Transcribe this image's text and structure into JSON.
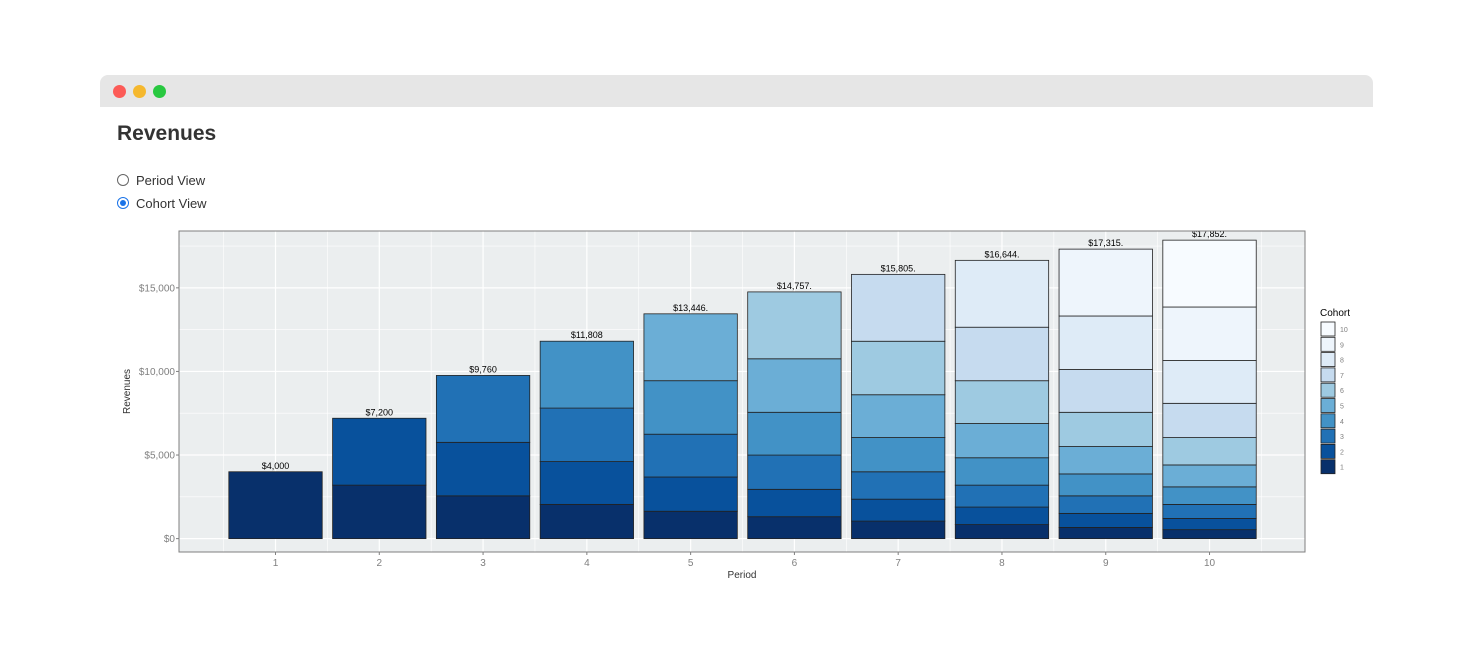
{
  "page": {
    "title": "Revenues"
  },
  "view_toggle": {
    "options": [
      {
        "label": "Period View",
        "selected": false
      },
      {
        "label": "Cohort View",
        "selected": true
      }
    ]
  },
  "chart_data": {
    "type": "bar",
    "stacked": true,
    "xlabel": "Period",
    "ylabel": "Revenues",
    "ylim": [
      -800,
      18400
    ],
    "yticks": [
      0,
      5000,
      10000,
      15000
    ],
    "ytick_labels": [
      "$0",
      "$5,000",
      "$10,000",
      "$15,000"
    ],
    "categories": [
      "1",
      "2",
      "3",
      "4",
      "5",
      "6",
      "7",
      "8",
      "9",
      "10"
    ],
    "totals": [
      4000,
      7200,
      9760,
      11808,
      13446,
      14757,
      15805,
      16644,
      17315,
      17852
    ],
    "total_labels": [
      "$4,000",
      "$7,200",
      "$9,760",
      "$11,808",
      "$13,446.",
      "$14,757.",
      "$15,805.",
      "$16,644.",
      "$17,315.",
      "$17,852."
    ],
    "legend": {
      "title": "Cohort",
      "position": "right",
      "entries": [
        "10",
        "9",
        "8",
        "7",
        "6",
        "5",
        "4",
        "3",
        "2",
        "1"
      ]
    },
    "colors": [
      "#08306b",
      "#08519c",
      "#2171b5",
      "#4292c6",
      "#6baed6",
      "#9ecae1",
      "#c6dbef",
      "#deebf7",
      "#eef5fc",
      "#f7fbff"
    ],
    "background": "#ebeeef",
    "series": [
      {
        "name": "1",
        "values": [
          4000,
          3200,
          2560,
          2048,
          1638,
          1311,
          1049,
          839,
          671,
          537
        ]
      },
      {
        "name": "2",
        "values": [
          null,
          4000,
          3200,
          2560,
          2048,
          1638,
          1311,
          1049,
          839,
          671
        ]
      },
      {
        "name": "3",
        "values": [
          null,
          null,
          4000,
          3200,
          2560,
          2048,
          1638,
          1311,
          1049,
          839
        ]
      },
      {
        "name": "4",
        "values": [
          null,
          null,
          null,
          4000,
          3200,
          2560,
          2048,
          1638,
          1311,
          1049
        ]
      },
      {
        "name": "5",
        "values": [
          null,
          null,
          null,
          null,
          4000,
          3200,
          2560,
          2048,
          1638,
          1311
        ]
      },
      {
        "name": "6",
        "values": [
          null,
          null,
          null,
          null,
          null,
          4000,
          3200,
          2560,
          2048,
          1638
        ]
      },
      {
        "name": "7",
        "values": [
          null,
          null,
          null,
          null,
          null,
          null,
          4000,
          3200,
          2560,
          2048
        ]
      },
      {
        "name": "8",
        "values": [
          null,
          null,
          null,
          null,
          null,
          null,
          null,
          4000,
          3200,
          2560
        ]
      },
      {
        "name": "9",
        "values": [
          null,
          null,
          null,
          null,
          null,
          null,
          null,
          null,
          4000,
          3200
        ]
      },
      {
        "name": "10",
        "values": [
          null,
          null,
          null,
          null,
          null,
          null,
          null,
          null,
          null,
          4000
        ]
      }
    ]
  }
}
